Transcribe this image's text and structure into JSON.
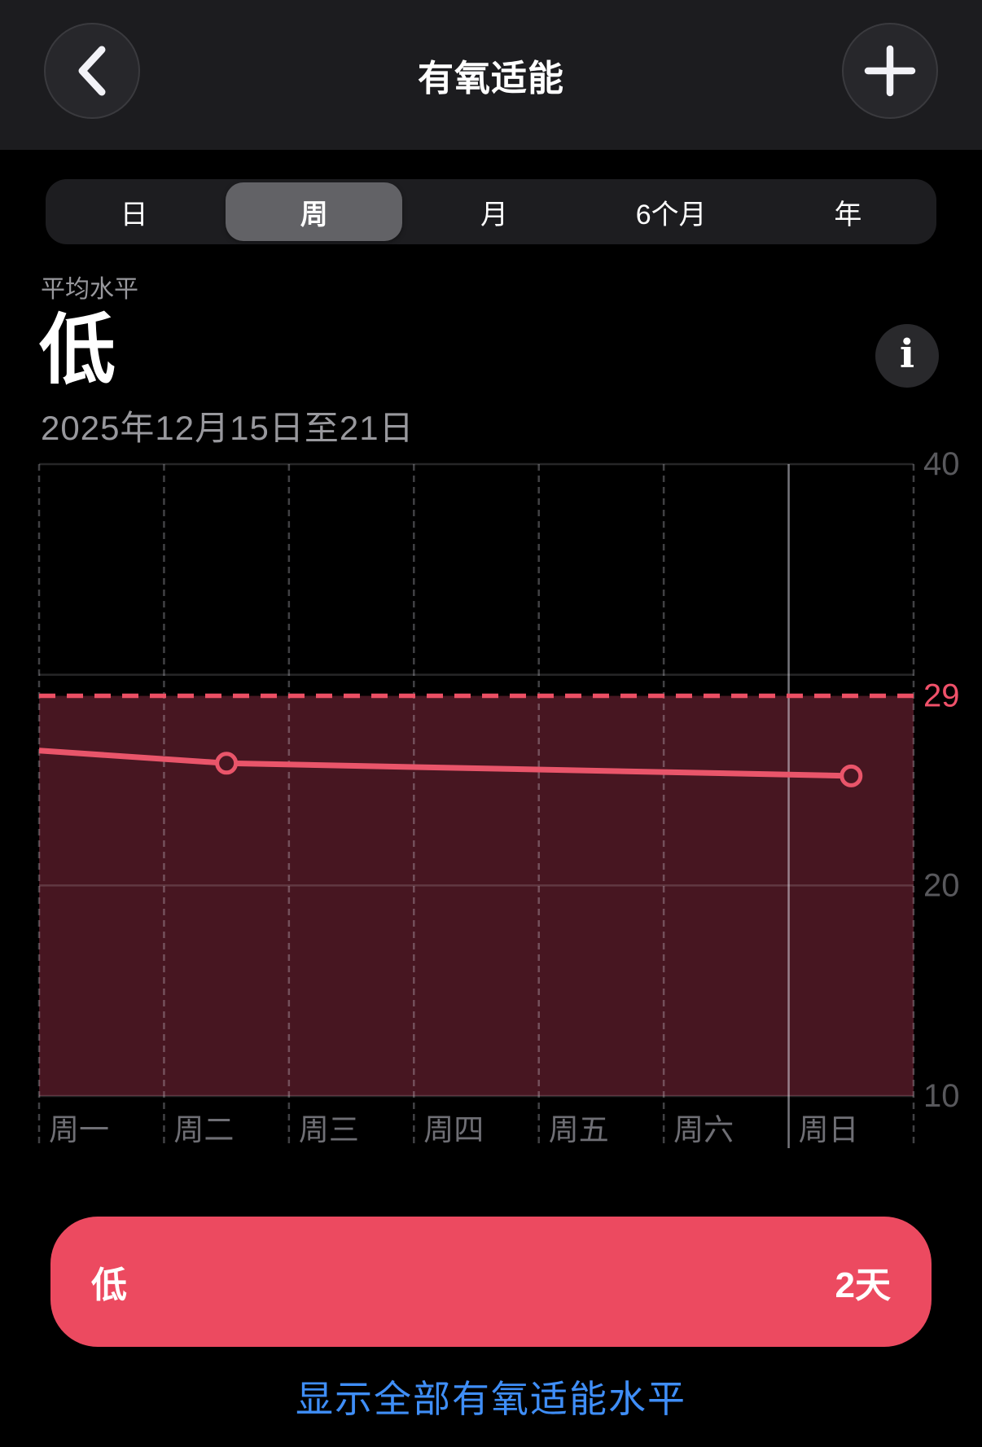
{
  "header": {
    "title": "有氧适能"
  },
  "time_range_selector": {
    "options": [
      "日",
      "周",
      "月",
      "6个月",
      "年"
    ],
    "selected": "周"
  },
  "summary": {
    "metric_label": "平均水平",
    "level_value": "低",
    "date_range": "2025年12月15日至21日"
  },
  "chart_data": {
    "type": "line",
    "x_categories": [
      "周一",
      "周二",
      "周三",
      "周四",
      "周五",
      "周六",
      "周日"
    ],
    "points": [
      {
        "x": "周二",
        "y": 25.8
      },
      {
        "x": "周日",
        "y": 25.2
      }
    ],
    "lead_in_value": 26.4,
    "threshold": {
      "value": 29,
      "label": "29",
      "style": "dashed"
    },
    "zone": {
      "name": "低",
      "shaded_below": 29
    },
    "ylim": [
      10,
      40
    ],
    "grid_values": [
      40,
      30,
      20,
      10
    ],
    "ytick_labels": [
      {
        "label": "40",
        "value": 40,
        "accent": false
      },
      {
        "label": "29",
        "value": 29,
        "accent": true
      },
      {
        "label": "20",
        "value": 20,
        "accent": false
      },
      {
        "label": "10",
        "value": 10,
        "accent": false
      }
    ],
    "grid": "on",
    "current_day_column": "周日"
  },
  "legend_pill": {
    "level_label": "低",
    "days_label": "2天"
  },
  "footer": {
    "show_all_link": "显示全部有氧适能水平"
  },
  "colors": {
    "accent_line": "#E9556A",
    "threshold_line": "#EC4F64",
    "accent_text": "#F0516A",
    "zone_fill": "#471621",
    "pill_bg": "#EC4A60",
    "link_blue": "#3F8EF7",
    "header_bg": "#1C1C1F",
    "selected_segment": "#626266",
    "gray_label": "#98989D",
    "tick_gray": "#58585C",
    "day_label_gray": "#6F6F75"
  }
}
